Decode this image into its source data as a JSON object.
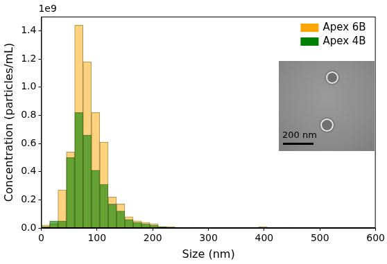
{
  "chart_data": {
    "type": "histogram",
    "x_label": "Size (nm)",
    "y_label": "Concentration (particles/mL)",
    "annotations": [
      "1e9",
      "200 nm"
    ],
    "bins": [
      0,
      15,
      30,
      45,
      60,
      75,
      90,
      105,
      120,
      135,
      150,
      165,
      180,
      195,
      210,
      225,
      240,
      255,
      270,
      285,
      300,
      315,
      330,
      345,
      360,
      375,
      390,
      405,
      420,
      435,
      450,
      465
    ],
    "series": [
      {
        "name": "Apex 6B",
        "color": "#ffa500",
        "values": [
          0.02,
          0.03,
          0.27,
          0.54,
          1.44,
          1.18,
          0.82,
          0.61,
          0.22,
          0.17,
          0.08,
          0.05,
          0.04,
          0.03,
          0.01,
          0.01,
          0.005,
          0.003,
          0.005,
          0.002,
          0.002,
          0,
          0,
          0,
          0,
          0,
          0.01,
          0,
          0,
          0.005,
          0
        ]
      },
      {
        "name": "Apex 4B",
        "color": "#008000",
        "values": [
          0.01,
          0.05,
          0.05,
          0.5,
          0.82,
          0.66,
          0.41,
          0.31,
          0.17,
          0.12,
          0.06,
          0.04,
          0.03,
          0.02,
          0.01,
          0.005,
          0.003,
          0.002,
          0.002,
          0,
          0,
          0,
          0,
          0,
          0,
          0,
          0,
          0,
          0,
          0,
          0
        ]
      }
    ],
    "xlim": [
      0,
      600
    ],
    "xticks": [
      0,
      100,
      200,
      300,
      400,
      500,
      600
    ],
    "ylim": [
      0,
      1.5
    ],
    "yticks": [
      {
        "value": 0,
        "label": "0.0"
      },
      {
        "value": 0.2,
        "label": "0.2"
      },
      {
        "value": 0.4,
        "label": "0.4"
      },
      {
        "value": 0.6,
        "label": "0.6"
      },
      {
        "value": 0.8,
        "label": "0.8"
      },
      {
        "value": 1.0,
        "label": "1.0"
      },
      {
        "value": 1.2,
        "label": "1.2"
      },
      {
        "value": 1.4,
        "label": "1.4"
      }
    ],
    "grid": false,
    "legend": "upper right"
  }
}
